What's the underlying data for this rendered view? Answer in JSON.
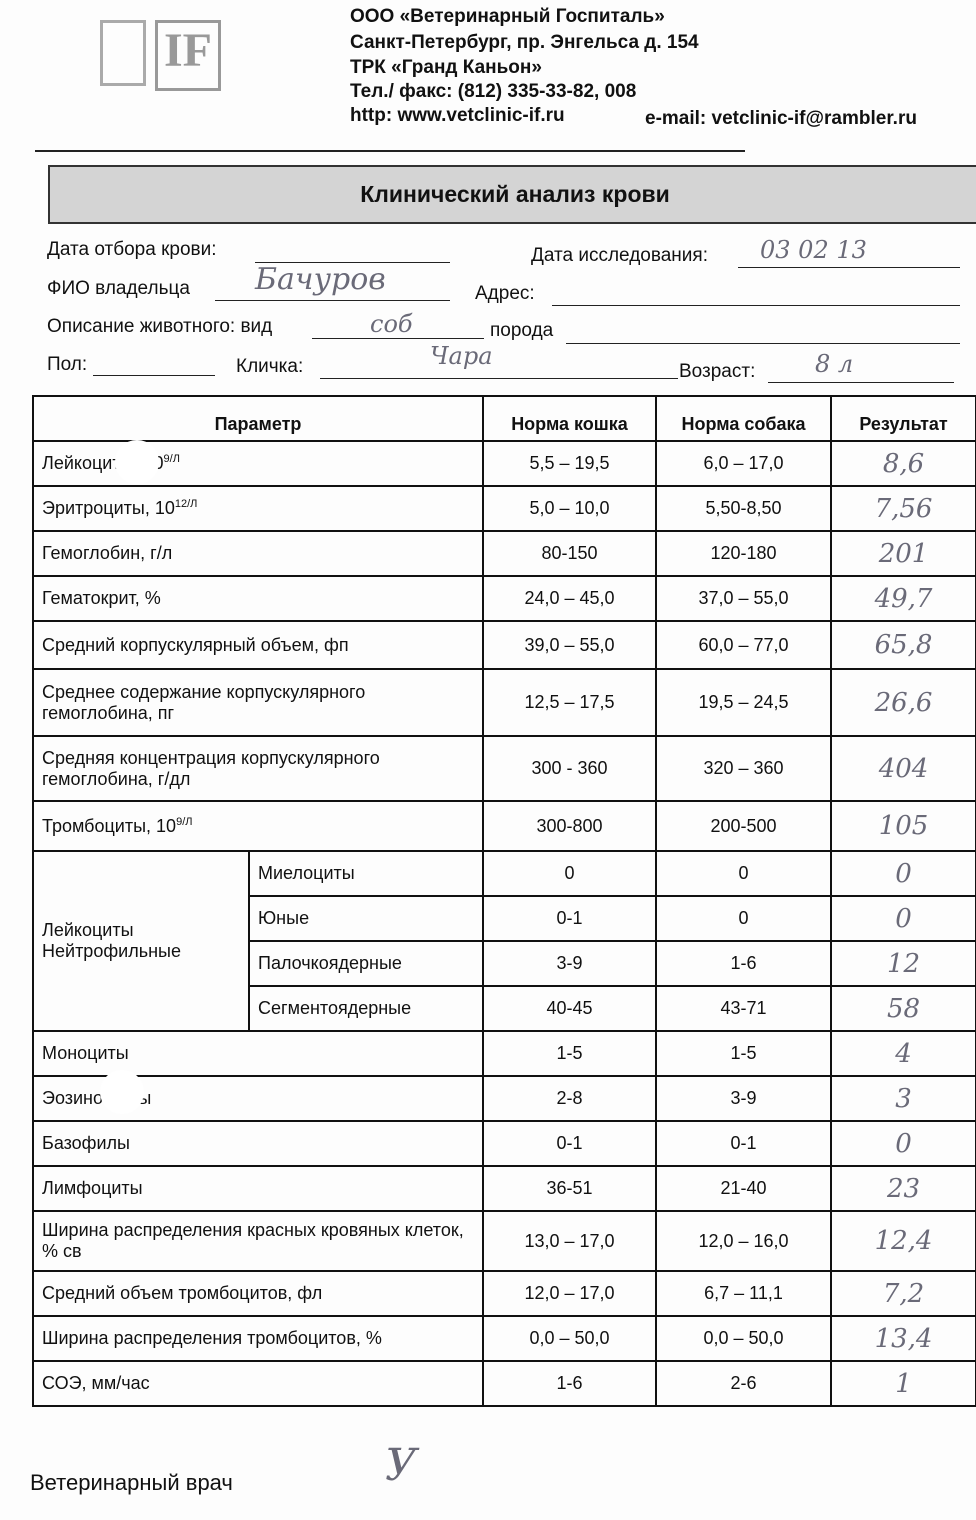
{
  "logo": {
    "text": "IF"
  },
  "clinic": {
    "name": "ООО «Ветеринарный Госпиталь»",
    "address": "Санкт-Петербург, пр. Энгельса д. 154",
    "mall": "ТРК «Гранд Каньон»",
    "phone": "Тел./ факс: (812) 335-33-82, 008",
    "website": "http: www.vetclinic-if.ru",
    "email": "e-mail: vetclinic-if@rambler.ru"
  },
  "title": "Клинический анализ крови",
  "form": {
    "blood_date_label": "Дата отбора крови:",
    "blood_date_value": "",
    "study_date_label": "Дата исследования:",
    "study_date_value": "03 02 13",
    "owner_label": "ФИО владельца",
    "owner_value": "Бачуров",
    "address_label": "Адрес:",
    "address_value": "",
    "species_label": "Описание животного: вид",
    "species_value": "соб",
    "breed_label": "порода",
    "breed_value": "",
    "sex_label": "Пол:",
    "sex_value": "",
    "name_label": "Кличка:",
    "name_value": "Чара",
    "age_label": "Возраст:",
    "age_value": "8 л"
  },
  "table": {
    "headers": [
      "Параметр",
      "Норма кошка",
      "Норма собака",
      "Результат"
    ],
    "group_label": "Лейкоциты Нейтрофильные",
    "rows": [
      {
        "param": "Лейкоциты, 10",
        "sup": "9/Л",
        "cat": "5,5 – 19,5",
        "dog": "6,0 – 17,0",
        "result": "8,6"
      },
      {
        "param": "Эритроциты, 10",
        "sup": "12/Л",
        "cat": "5,0 – 10,0",
        "dog": "5,50-8,50",
        "result": "7,56"
      },
      {
        "param": "Гемоглобин, г/л",
        "cat": "80-150",
        "dog": "120-180",
        "result": "201"
      },
      {
        "param": "Гематокрит, %",
        "cat": "24,0 – 45,0",
        "dog": "37,0 – 55,0",
        "result": "49,7"
      },
      {
        "param": "Средний корпускулярный объем, фп",
        "cat": "39,0 – 55,0",
        "dog": "60,0 – 77,0",
        "result": "65,8"
      },
      {
        "param": "Среднее содержание корпускулярного гемоглобина, пг",
        "cat": "12,5 – 17,5",
        "dog": "19,5 – 24,5",
        "result": "26,6"
      },
      {
        "param": "Средняя концентрация корпускулярного гемоглобина, г/дл",
        "cat": "300 - 360",
        "dog": "320 – 360",
        "result": "404"
      },
      {
        "param": "Тромбоциты, 10",
        "sup": "9/Л",
        "cat": "300-800",
        "dog": "200-500",
        "result": "105"
      },
      {
        "param": "Миелоциты",
        "cat": "0",
        "dog": "0",
        "result": "0"
      },
      {
        "param": "Юные",
        "cat": "0-1",
        "dog": "0",
        "result": "0"
      },
      {
        "param": "Палочкоядерные",
        "cat": "3-9",
        "dog": "1-6",
        "result": "12"
      },
      {
        "param": "Сегментоядерные",
        "cat": "40-45",
        "dog": "43-71",
        "result": "58"
      },
      {
        "param": "Моноциты",
        "cat": "1-5",
        "dog": "1-5",
        "result": "4"
      },
      {
        "param": "Эозинофилы",
        "cat": "2-8",
        "dog": "3-9",
        "result": "3"
      },
      {
        "param": "Базофилы",
        "cat": "0-1",
        "dog": "0-1",
        "result": "0"
      },
      {
        "param": "Лимфоциты",
        "cat": "36-51",
        "dog": "21-40",
        "result": "23"
      },
      {
        "param": "Ширина распределения красных кровяных клеток, % св",
        "cat": "13,0 – 17,0",
        "dog": "12,0 – 16,0",
        "result": "12,4"
      },
      {
        "param": "Средний объем тромбоцитов, фл",
        "cat": "12,0 – 17,0",
        "dog": "6,7 – 11,1",
        "result": "7,2"
      },
      {
        "param": "Ширина распределения тромбоцитов, %",
        "cat": "0,0 – 50,0",
        "dog": "0,0 – 50,0",
        "result": "13,4"
      },
      {
        "param": "СОЭ, мм/час",
        "cat": "1-6",
        "dog": "2-6",
        "result": "1"
      }
    ]
  },
  "footer": {
    "vet_label": "Ветеринарный врач",
    "signature": "У"
  }
}
